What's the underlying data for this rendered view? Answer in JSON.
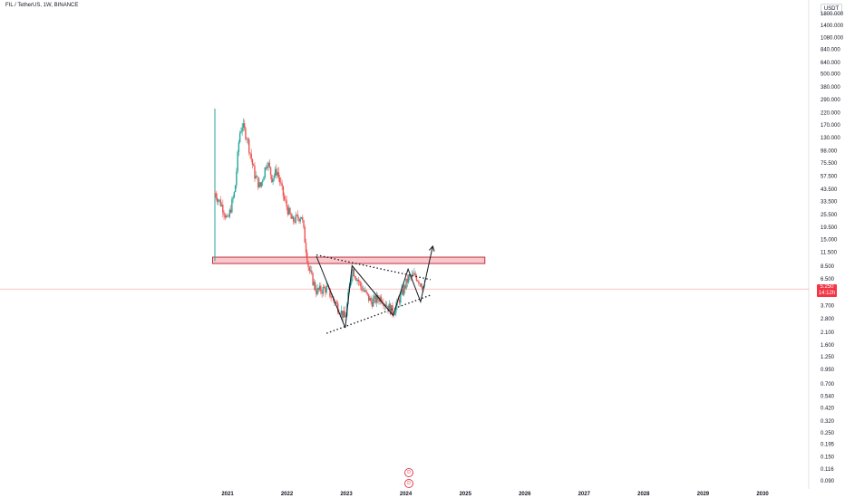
{
  "header": {
    "title": "FIL / TetherUS, 1W, BINANCE",
    "currency": "USDT"
  },
  "price_tag": {
    "price": "5.250",
    "countdown": "14:12h"
  },
  "event_icons": [
    "D",
    "D"
  ],
  "colors": {
    "up": "#26a69a",
    "down": "#ef5350",
    "zone_fill": "#f8c8cc",
    "zone_stroke": "#c0303e",
    "drawing": "#131722",
    "price_line": "#f23645"
  },
  "chart_data": {
    "type": "candlestick",
    "symbol": "FIL / TetherUS",
    "interval": "1W",
    "exchange": "BINANCE",
    "scale": "log",
    "y_ticks": [
      "1800.000",
      "1400.000",
      "1080.000",
      "840.000",
      "640.000",
      "500.000",
      "380.000",
      "290.000",
      "220.000",
      "170.000",
      "130.000",
      "98.000",
      "75.500",
      "57.500",
      "43.500",
      "33.500",
      "25.500",
      "19.500",
      "15.000",
      "11.500",
      "8.500",
      "6.500",
      "3.700",
      "2.800",
      "2.100",
      "1.600",
      "1.250",
      "0.950",
      "0.700",
      "0.540",
      "0.420",
      "0.320",
      "0.250",
      "0.195",
      "0.150",
      "0.116",
      "0.090"
    ],
    "x_ticks": [
      "2021",
      "2022",
      "2023",
      "2024",
      "2025",
      "2026",
      "2027",
      "2028",
      "2029",
      "2030"
    ],
    "current_price": 5.25,
    "price_path": [
      {
        "date": "2020-10-15",
        "price": 40
      },
      {
        "date": "2020-12-01",
        "price": 30
      },
      {
        "date": "2021-01-01",
        "price": 22
      },
      {
        "date": "2021-02-15",
        "price": 42
      },
      {
        "date": "2021-03-15",
        "price": 140
      },
      {
        "date": "2021-04-01",
        "price": 170
      },
      {
        "date": "2021-05-01",
        "price": 130
      },
      {
        "date": "2021-06-15",
        "price": 60
      },
      {
        "date": "2021-07-20",
        "price": 45
      },
      {
        "date": "2021-09-01",
        "price": 80
      },
      {
        "date": "2021-10-01",
        "price": 55
      },
      {
        "date": "2021-11-01",
        "price": 65
      },
      {
        "date": "2021-12-15",
        "price": 35
      },
      {
        "date": "2022-02-01",
        "price": 22
      },
      {
        "date": "2022-04-01",
        "price": 25
      },
      {
        "date": "2022-05-15",
        "price": 8
      },
      {
        "date": "2022-07-01",
        "price": 5
      },
      {
        "date": "2022-09-01",
        "price": 5.3
      },
      {
        "date": "2022-11-15",
        "price": 3.5
      },
      {
        "date": "2022-12-25",
        "price": 2.8
      },
      {
        "date": "2023-02-05",
        "price": 8.2
      },
      {
        "date": "2023-04-01",
        "price": 5.5
      },
      {
        "date": "2023-06-01",
        "price": 4.0
      },
      {
        "date": "2023-08-01",
        "price": 4.4
      },
      {
        "date": "2023-10-15",
        "price": 3.2
      },
      {
        "date": "2023-12-01",
        "price": 4.5
      },
      {
        "date": "2024-01-15",
        "price": 6.5
      },
      {
        "date": "2024-03-01",
        "price": 7.0
      },
      {
        "date": "2024-04-01",
        "price": 6.0
      },
      {
        "date": "2024-05-01",
        "price": 5.25
      }
    ],
    "listing_spike": {
      "date": "2020-10-15",
      "high": 240,
      "low": 9.5
    },
    "annotations": {
      "horizontal_zone": {
        "x_start": "2020-10-01",
        "x_end": "2025-05-01",
        "price_low": 9.0,
        "price_high": 10.3
      },
      "upper_trendline": [
        {
          "date": "2022-07-01",
          "price": 10.8
        },
        {
          "date": "2024-06-01",
          "price": 6.4
        }
      ],
      "lower_trendline": [
        {
          "date": "2022-09-01",
          "price": 2.05
        },
        {
          "date": "2024-06-01",
          "price": 4.6
        }
      ],
      "zigzag": [
        {
          "date": "2022-07-01",
          "price": 10.5
        },
        {
          "date": "2022-12-25",
          "price": 2.3
        },
        {
          "date": "2023-02-05",
          "price": 8.6
        },
        {
          "date": "2023-10-15",
          "price": 3.0
        },
        {
          "date": "2024-01-15",
          "price": 8.0
        },
        {
          "date": "2024-04-01",
          "price": 4.0
        },
        {
          "date": "2024-06-15",
          "price": 13.0
        }
      ]
    }
  }
}
